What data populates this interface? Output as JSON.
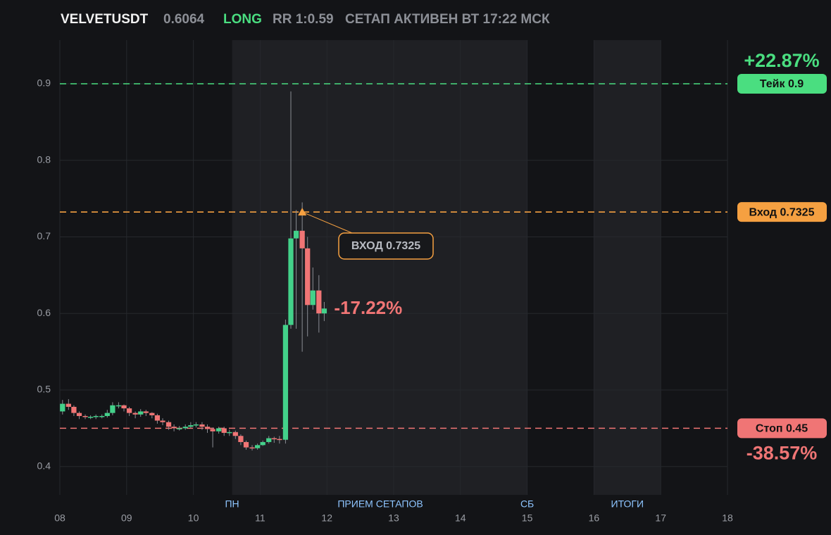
{
  "chart_data": {
    "type": "candlestick",
    "symbol": "VELVETUSDT",
    "price": "0.6064",
    "side": "LONG",
    "rr": "RR 1:0.59",
    "status": "СЕТАП АКТИВЕН ВТ 17:22 МСК",
    "xlim": [
      8,
      18
    ],
    "ylim": [
      0.363,
      0.957
    ],
    "xticks": [
      {
        "value": 8,
        "label": "08"
      },
      {
        "value": 9,
        "label": "09"
      },
      10,
      11,
      12,
      13,
      14,
      15,
      16,
      17,
      18
    ],
    "yticks": [
      0.4,
      0.5,
      0.6,
      0.7,
      0.8,
      0.9
    ],
    "grid": true,
    "up_color": "#43d18a",
    "down_color": "#f07575",
    "x": [
      8.04,
      8.13,
      8.21,
      8.29,
      8.38,
      8.46,
      8.54,
      8.63,
      8.71,
      8.79,
      8.88,
      8.96,
      9.04,
      9.13,
      9.21,
      9.29,
      9.38,
      9.46,
      9.54,
      9.63,
      9.71,
      9.79,
      9.88,
      9.96,
      10.04,
      10.13,
      10.21,
      10.29,
      10.38,
      10.46,
      10.54,
      10.63,
      10.71,
      10.79,
      10.88,
      10.96,
      11.04,
      11.13,
      11.21,
      11.29,
      11.38,
      11.46,
      11.54,
      11.63,
      11.71,
      11.79,
      11.88,
      11.96
    ],
    "open": [
      0.472,
      0.482,
      0.478,
      0.47,
      0.466,
      0.465,
      0.465,
      0.466,
      0.466,
      0.47,
      0.48,
      0.48,
      0.476,
      0.47,
      0.468,
      0.472,
      0.47,
      0.467,
      0.46,
      0.458,
      0.452,
      0.45,
      0.45,
      0.452,
      0.454,
      0.455,
      0.452,
      0.449,
      0.446,
      0.45,
      0.444,
      0.445,
      0.44,
      0.432,
      0.425,
      0.424,
      0.428,
      0.432,
      0.437,
      0.436,
      0.435,
      0.585,
      0.698,
      0.708,
      0.685,
      0.611,
      0.63,
      0.6
    ],
    "high": [
      0.487,
      0.488,
      0.48,
      0.472,
      0.468,
      0.467,
      0.468,
      0.468,
      0.474,
      0.484,
      0.484,
      0.481,
      0.478,
      0.472,
      0.475,
      0.474,
      0.471,
      0.469,
      0.463,
      0.46,
      0.455,
      0.453,
      0.455,
      0.458,
      0.458,
      0.458,
      0.455,
      0.451,
      0.452,
      0.452,
      0.448,
      0.447,
      0.442,
      0.434,
      0.428,
      0.43,
      0.434,
      0.44,
      0.439,
      0.44,
      0.592,
      0.89,
      0.735,
      0.745,
      0.7,
      0.66,
      0.65,
      0.615
    ],
    "low": [
      0.468,
      0.474,
      0.466,
      0.462,
      0.462,
      0.462,
      0.462,
      0.463,
      0.464,
      0.467,
      0.476,
      0.472,
      0.466,
      0.463,
      0.465,
      0.466,
      0.463,
      0.456,
      0.454,
      0.448,
      0.446,
      0.447,
      0.448,
      0.45,
      0.451,
      0.448,
      0.444,
      0.425,
      0.443,
      0.44,
      0.44,
      0.436,
      0.428,
      0.422,
      0.421,
      0.422,
      0.427,
      0.43,
      0.431,
      0.43,
      0.43,
      0.58,
      0.58,
      0.55,
      0.57,
      0.605,
      0.575,
      0.59
    ],
    "close": [
      0.482,
      0.478,
      0.47,
      0.466,
      0.465,
      0.465,
      0.466,
      0.466,
      0.47,
      0.48,
      0.48,
      0.476,
      0.47,
      0.468,
      0.472,
      0.47,
      0.467,
      0.46,
      0.458,
      0.452,
      0.45,
      0.45,
      0.452,
      0.454,
      0.455,
      0.452,
      0.449,
      0.446,
      0.45,
      0.444,
      0.445,
      0.44,
      0.432,
      0.425,
      0.424,
      0.428,
      0.432,
      0.437,
      0.436,
      0.435,
      0.585,
      0.698,
      0.708,
      0.685,
      0.611,
      0.63,
      0.6,
      0.6064
    ],
    "sessions": [
      {
        "label": "ПН",
        "x": 10.58
      },
      {
        "label": "ПРИЕМ СЕТАПОВ",
        "x": 12.8
      },
      {
        "label": "СБ",
        "x": 15.0
      },
      {
        "label": "ИТОГИ",
        "x": 16.5
      }
    ],
    "shaded": [
      [
        10.58,
        15.0
      ],
      [
        16.0,
        17.0
      ]
    ],
    "levels": [
      {
        "label": "Тейк 0.9",
        "value": 0.9,
        "change": "+22.87%",
        "color": "#4ade80"
      },
      {
        "label": "Вход 0.7325",
        "value": 0.7325,
        "color": "#f5a041"
      },
      {
        "label": "Стоп 0.45",
        "value": 0.45,
        "change": "-38.57%",
        "color": "#f07575"
      }
    ],
    "entry_marker": {
      "label": "ВХОД 0.7325",
      "x": 11.63,
      "y": 0.7325
    },
    "last_change": "-17.22%"
  }
}
